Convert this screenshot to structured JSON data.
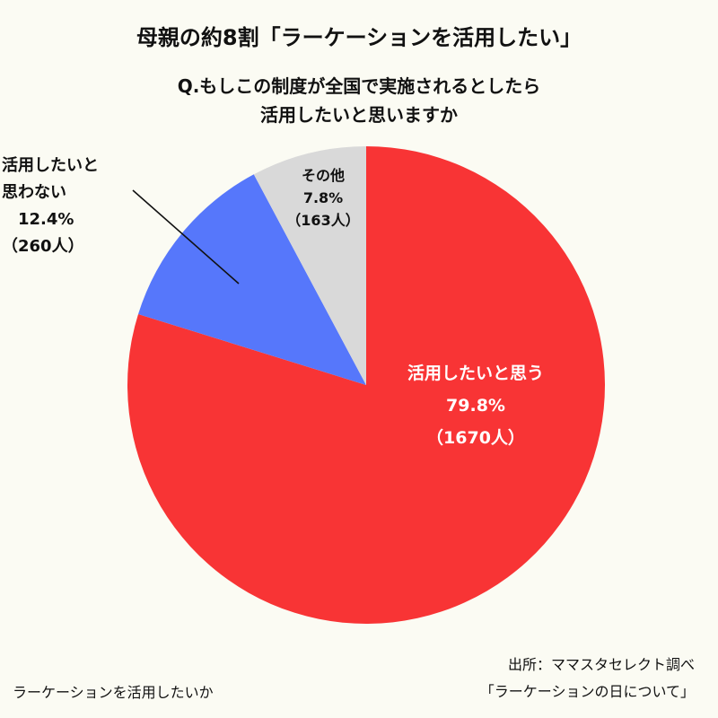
{
  "header": {
    "title": "母親の約8割「ラーケーションを活用したい」",
    "question_line1": "Q.もしこの制度が全国で実施されるとしたら",
    "question_line2": "活用したいと思いますか"
  },
  "chart_data": {
    "type": "pie",
    "start_angle_deg": 0,
    "direction": "clockwise",
    "slices": [
      {
        "label": "活用したいと思う",
        "percent": 79.8,
        "percent_text": "79.8%",
        "count_text": "（1670人）",
        "count": 1670,
        "color": "#f83435"
      },
      {
        "label_line1": "活用したいと",
        "label_line2": "思わない",
        "percent": 12.4,
        "percent_text": "12.4%",
        "count_text": "（260人）",
        "count": 260,
        "color": "#5677fb"
      },
      {
        "label": "その他",
        "percent": 7.8,
        "percent_text": "7.8%",
        "count_text": "（163人）",
        "count": 163,
        "color": "#d9d9d9"
      }
    ]
  },
  "footer": {
    "left_text": "ラーケーションを活用したいか",
    "source_line1": "出所：ママスタセレクト調べ",
    "source_line2": "「ラーケーションの日について」"
  }
}
